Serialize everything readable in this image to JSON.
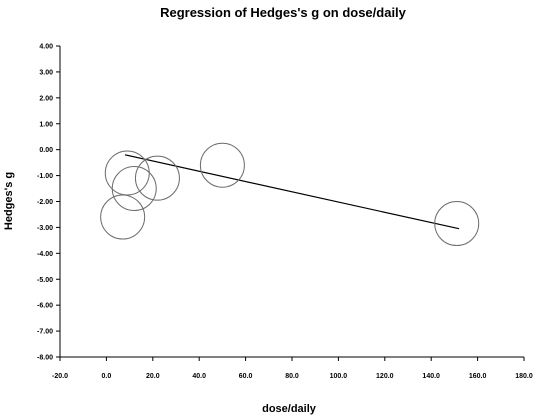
{
  "chart_data": {
    "type": "scatter",
    "title": "Regression of Hedges's g on dose/daily",
    "xlabel": "dose/daily",
    "ylabel": "Hedges's g",
    "xlim": [
      -20,
      180
    ],
    "ylim": [
      -8,
      4
    ],
    "x_ticks": [
      -20,
      0,
      20,
      40,
      60,
      80,
      100,
      120,
      140,
      160,
      180
    ],
    "x_tick_labels": [
      "-20.0",
      "0.0",
      "20.0",
      "40.0",
      "60.0",
      "80.0",
      "100.0",
      "120.0",
      "140.0",
      "160.0",
      "180.0"
    ],
    "y_ticks": [
      4,
      3,
      2,
      1,
      0,
      -1,
      -2,
      -3,
      -4,
      -5,
      -6,
      -7,
      -8
    ],
    "y_tick_labels": [
      "4.00",
      "3.00",
      "2.00",
      "1.00",
      "0.00",
      "-1.00",
      "-2.00",
      "-3.00",
      "-4.00",
      "-5.00",
      "-6.00",
      "-7.00",
      "-8.00"
    ],
    "grid": false,
    "legend": "none",
    "points": [
      {
        "x": 9,
        "y": -0.9,
        "weight": 1.0
      },
      {
        "x": 12,
        "y": -1.5,
        "weight": 1.0
      },
      {
        "x": 7,
        "y": -2.6,
        "weight": 1.0
      },
      {
        "x": 22,
        "y": -1.1,
        "weight": 1.0
      },
      {
        "x": 50,
        "y": -0.6,
        "weight": 1.0
      },
      {
        "x": 151,
        "y": -2.85,
        "weight": 1.0
      }
    ],
    "regression_line": {
      "x": [
        8,
        152
      ],
      "y": [
        -0.2,
        -3.05
      ]
    },
    "colors": {
      "marker": "#6e6e6e",
      "line": "#000000",
      "axis": "#000000"
    }
  }
}
